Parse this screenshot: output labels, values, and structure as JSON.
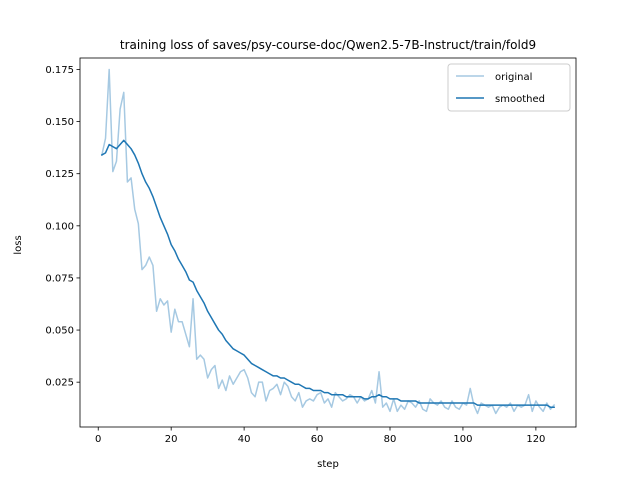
{
  "chart_data": {
    "type": "line",
    "title": "training loss of saves/psy-course-doc/Qwen2.5-7B-Instruct/train/fold9",
    "xlabel": "step",
    "ylabel": "loss",
    "xlim": [
      -5,
      131
    ],
    "ylim": [
      0.0035,
      0.1805
    ],
    "xticks": [
      0,
      20,
      40,
      60,
      80,
      100,
      120
    ],
    "xtick_labels": [
      "0",
      "20",
      "40",
      "60",
      "80",
      "100",
      "120"
    ],
    "yticks": [
      0.025,
      0.05,
      0.075,
      0.1,
      0.125,
      0.15,
      0.175
    ],
    "ytick_labels": [
      "0.025",
      "0.050",
      "0.075",
      "0.100",
      "0.125",
      "0.150",
      "0.175"
    ],
    "grid": false,
    "legend": {
      "placement": "top-right",
      "entries": [
        "original",
        "smoothed"
      ]
    },
    "series": [
      {
        "name": "original",
        "color": "#a6c9e2",
        "x": [
          1,
          2,
          3,
          4,
          5,
          6,
          7,
          8,
          9,
          10,
          11,
          12,
          13,
          14,
          15,
          16,
          17,
          18,
          19,
          20,
          21,
          22,
          23,
          24,
          25,
          26,
          27,
          28,
          29,
          30,
          31,
          32,
          33,
          34,
          35,
          36,
          37,
          38,
          39,
          40,
          41,
          42,
          43,
          44,
          45,
          46,
          47,
          48,
          49,
          50,
          51,
          52,
          53,
          54,
          55,
          56,
          57,
          58,
          59,
          60,
          61,
          62,
          63,
          64,
          65,
          66,
          67,
          68,
          69,
          70,
          71,
          72,
          73,
          74,
          75,
          76,
          77,
          78,
          79,
          80,
          81,
          82,
          83,
          84,
          85,
          86,
          87,
          88,
          89,
          90,
          91,
          92,
          93,
          94,
          95,
          96,
          97,
          98,
          99,
          100,
          101,
          102,
          103,
          104,
          105,
          106,
          107,
          108,
          109,
          110,
          111,
          112,
          113,
          114,
          115,
          116,
          117,
          118,
          119,
          120,
          121,
          122,
          123,
          124,
          125
        ],
        "y": [
          0.134,
          0.142,
          0.175,
          0.126,
          0.131,
          0.156,
          0.164,
          0.121,
          0.123,
          0.108,
          0.101,
          0.079,
          0.081,
          0.085,
          0.081,
          0.059,
          0.065,
          0.062,
          0.064,
          0.049,
          0.06,
          0.054,
          0.054,
          0.048,
          0.042,
          0.065,
          0.036,
          0.038,
          0.036,
          0.027,
          0.031,
          0.033,
          0.022,
          0.026,
          0.021,
          0.028,
          0.024,
          0.027,
          0.03,
          0.031,
          0.027,
          0.02,
          0.018,
          0.025,
          0.025,
          0.016,
          0.021,
          0.022,
          0.024,
          0.019,
          0.025,
          0.023,
          0.018,
          0.016,
          0.02,
          0.013,
          0.016,
          0.017,
          0.016,
          0.019,
          0.02,
          0.015,
          0.017,
          0.013,
          0.02,
          0.018,
          0.016,
          0.017,
          0.019,
          0.018,
          0.015,
          0.018,
          0.016,
          0.017,
          0.021,
          0.015,
          0.03,
          0.013,
          0.015,
          0.011,
          0.017,
          0.011,
          0.014,
          0.012,
          0.016,
          0.015,
          0.013,
          0.016,
          0.012,
          0.011,
          0.017,
          0.015,
          0.014,
          0.016,
          0.013,
          0.012,
          0.016,
          0.013,
          0.012,
          0.015,
          0.014,
          0.022,
          0.014,
          0.01,
          0.015,
          0.014,
          0.013,
          0.014,
          0.01,
          0.013,
          0.014,
          0.013,
          0.015,
          0.011,
          0.014,
          0.013,
          0.014,
          0.019,
          0.011,
          0.016,
          0.013,
          0.011,
          0.015,
          0.012,
          0.014
        ]
      },
      {
        "name": "smoothed",
        "color": "#1f77b4",
        "x": [
          1,
          2,
          3,
          4,
          5,
          6,
          7,
          8,
          9,
          10,
          11,
          12,
          13,
          14,
          15,
          16,
          17,
          18,
          19,
          20,
          21,
          22,
          23,
          24,
          25,
          26,
          27,
          28,
          29,
          30,
          31,
          32,
          33,
          34,
          35,
          36,
          37,
          38,
          39,
          40,
          41,
          42,
          43,
          44,
          45,
          46,
          47,
          48,
          49,
          50,
          51,
          52,
          53,
          54,
          55,
          56,
          57,
          58,
          59,
          60,
          61,
          62,
          63,
          64,
          65,
          66,
          67,
          68,
          69,
          70,
          71,
          72,
          73,
          74,
          75,
          76,
          77,
          78,
          79,
          80,
          81,
          82,
          83,
          84,
          85,
          86,
          87,
          88,
          89,
          90,
          91,
          92,
          93,
          94,
          95,
          96,
          97,
          98,
          99,
          100,
          101,
          102,
          103,
          104,
          105,
          106,
          107,
          108,
          109,
          110,
          111,
          112,
          113,
          114,
          115,
          116,
          117,
          118,
          119,
          120,
          121,
          122,
          123,
          124,
          125
        ],
        "y": [
          0.134,
          0.135,
          0.139,
          0.138,
          0.137,
          0.139,
          0.141,
          0.139,
          0.137,
          0.134,
          0.13,
          0.125,
          0.121,
          0.118,
          0.114,
          0.109,
          0.104,
          0.1,
          0.096,
          0.091,
          0.088,
          0.084,
          0.081,
          0.078,
          0.074,
          0.073,
          0.069,
          0.066,
          0.063,
          0.059,
          0.056,
          0.053,
          0.05,
          0.048,
          0.045,
          0.043,
          0.041,
          0.04,
          0.039,
          0.038,
          0.036,
          0.034,
          0.033,
          0.032,
          0.031,
          0.03,
          0.029,
          0.028,
          0.028,
          0.027,
          0.027,
          0.026,
          0.025,
          0.024,
          0.024,
          0.023,
          0.022,
          0.022,
          0.021,
          0.021,
          0.021,
          0.02,
          0.02,
          0.019,
          0.019,
          0.019,
          0.019,
          0.018,
          0.018,
          0.018,
          0.018,
          0.018,
          0.017,
          0.017,
          0.018,
          0.018,
          0.019,
          0.018,
          0.018,
          0.017,
          0.017,
          0.017,
          0.016,
          0.016,
          0.016,
          0.016,
          0.016,
          0.015,
          0.015,
          0.015,
          0.015,
          0.015,
          0.015,
          0.015,
          0.015,
          0.015,
          0.015,
          0.015,
          0.015,
          0.015,
          0.015,
          0.015,
          0.015,
          0.014,
          0.014,
          0.014,
          0.014,
          0.014,
          0.014,
          0.014,
          0.014,
          0.014,
          0.014,
          0.014,
          0.014,
          0.014,
          0.014,
          0.014,
          0.014,
          0.014,
          0.014,
          0.014,
          0.014,
          0.013,
          0.013
        ]
      }
    ]
  }
}
